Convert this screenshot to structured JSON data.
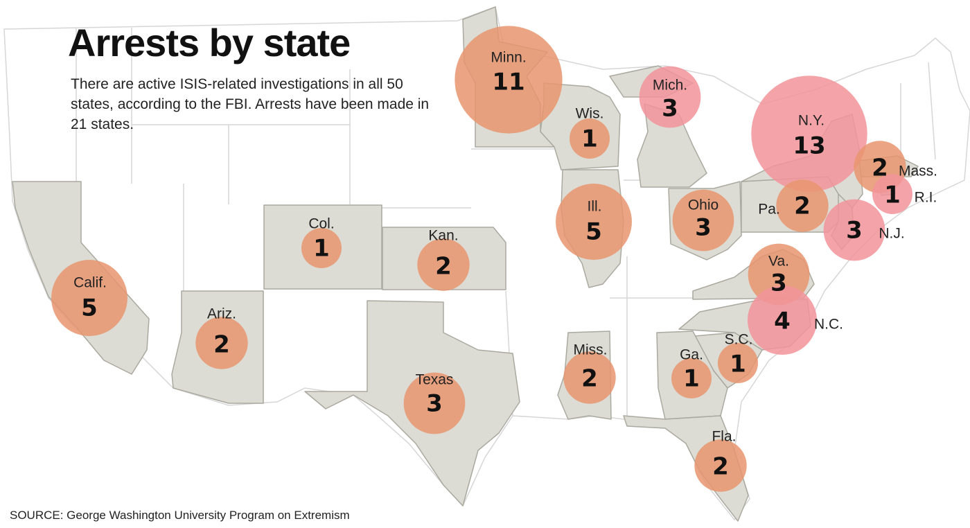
{
  "title": "Arrests by state",
  "subtitle": "There are active ISIS-related investigations in all 50 states, according to the FBI. Arrests have been made in 21 states.",
  "source": "SOURCE: George Washington University Program on Extremism",
  "colors": {
    "state_fill": "#dcdcd4",
    "state_outline": "#a9a99f",
    "bubble_orange": "#e8956f",
    "bubble_pink": "#f2949a",
    "background": "#ffffff"
  },
  "states": [
    {
      "label": "Minn.",
      "count": 11
    },
    {
      "label": "Wis.",
      "count": 1
    },
    {
      "label": "Mich.",
      "count": 3
    },
    {
      "label": "N.Y.",
      "count": 13
    },
    {
      "label": "Mass.",
      "count": 2
    },
    {
      "label": "R.I.",
      "count": 1
    },
    {
      "label": "Pa.",
      "count": 2
    },
    {
      "label": "N.J.",
      "count": 3
    },
    {
      "label": "Ohio",
      "count": 3
    },
    {
      "label": "Ill.",
      "count": 5
    },
    {
      "label": "Col.",
      "count": 1
    },
    {
      "label": "Kan.",
      "count": 2
    },
    {
      "label": "Calif.",
      "count": 5
    },
    {
      "label": "Ariz.",
      "count": 2
    },
    {
      "label": "Texas",
      "count": 3
    },
    {
      "label": "Va.",
      "count": 3
    },
    {
      "label": "N.C.",
      "count": 4
    },
    {
      "label": "S.C.",
      "count": 1
    },
    {
      "label": "Ga.",
      "count": 1
    },
    {
      "label": "Miss.",
      "count": 2
    },
    {
      "label": "Fla.",
      "count": 2
    }
  ]
}
